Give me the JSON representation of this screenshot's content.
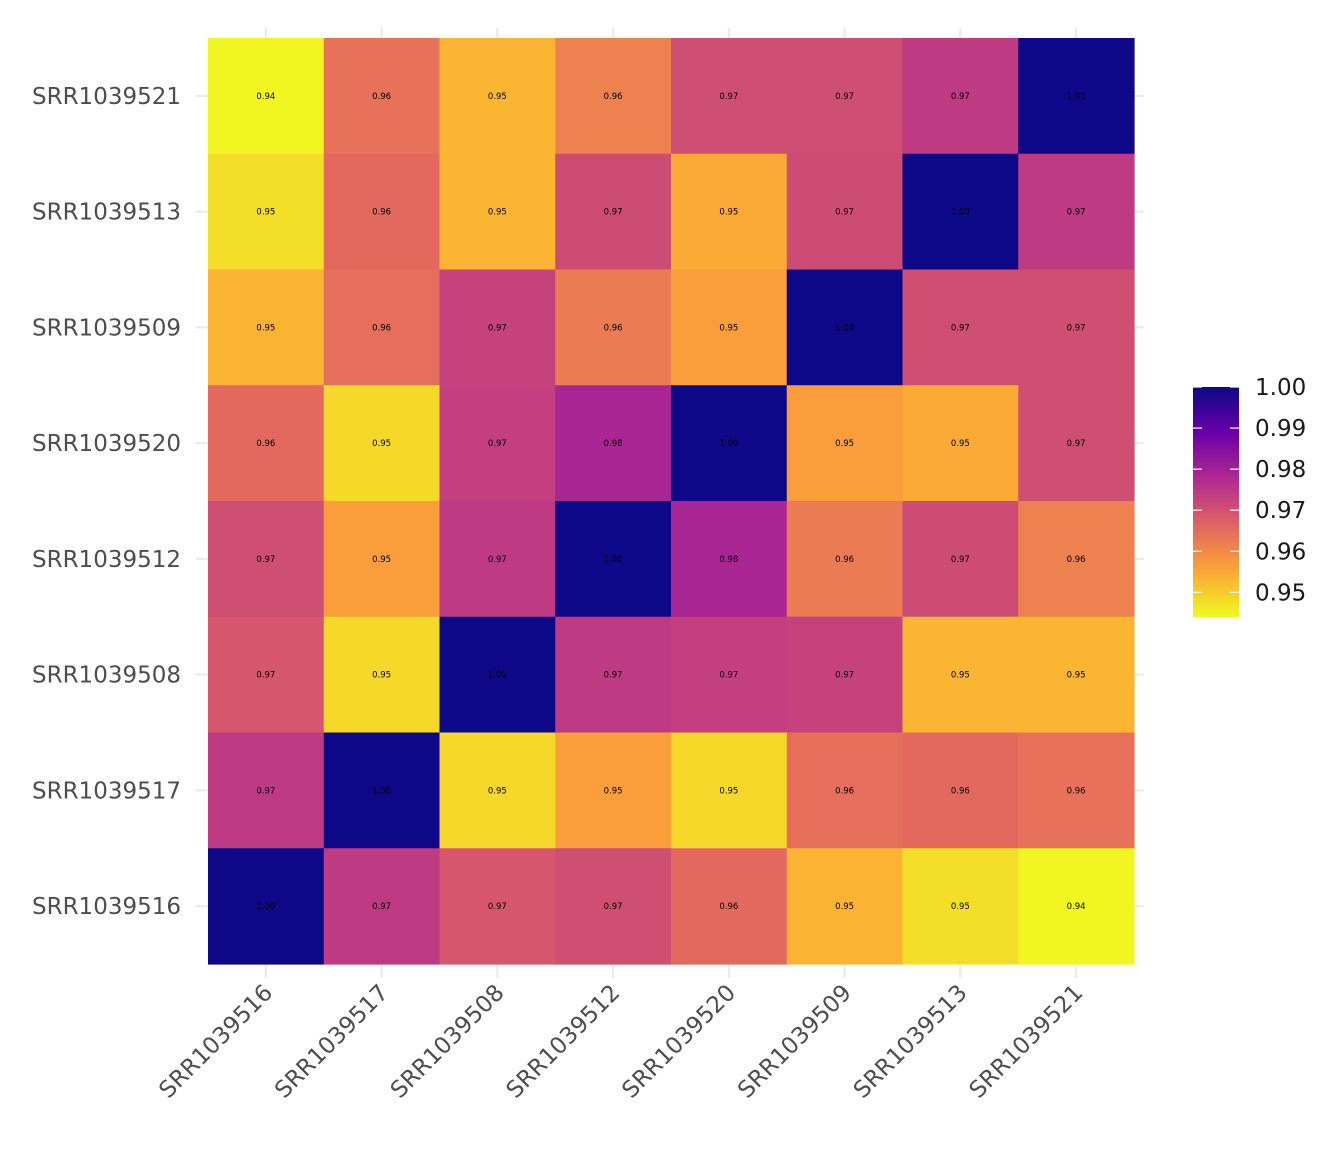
{
  "chart_data": {
    "type": "heatmap",
    "title": "",
    "xlabel": "",
    "ylabel": "",
    "x_categories": [
      "SRR1039516",
      "SRR1039517",
      "SRR1039508",
      "SRR1039512",
      "SRR1039520",
      "SRR1039509",
      "SRR1039513",
      "SRR1039521"
    ],
    "y_categories_top_to_bottom": [
      "SRR1039521",
      "SRR1039513",
      "SRR1039509",
      "SRR1039520",
      "SRR1039512",
      "SRR1039508",
      "SRR1039517",
      "SRR1039516"
    ],
    "values_note": "Rows follow y_categories_top_to_bottom; columns follow x_categories. Displayed labels are values rounded to 2 decimals. Fine-grained values are estimated from cell colours and are not shown in the image.",
    "values": [
      [
        0.9445,
        0.964,
        0.953,
        0.9615,
        0.9705,
        0.9705,
        0.9745,
        1.0
      ],
      [
        0.9475,
        0.9655,
        0.953,
        0.971,
        0.9545,
        0.971,
        1.0,
        0.9745
      ],
      [
        0.9535,
        0.9645,
        0.973,
        0.9625,
        0.9565,
        1.0,
        0.9705,
        0.9705
      ],
      [
        0.9655,
        0.9485,
        0.9735,
        0.979,
        1.0,
        0.9565,
        0.9545,
        0.9705
      ],
      [
        0.9705,
        0.9565,
        0.9745,
        1.0,
        0.979,
        0.9625,
        0.971,
        0.9615
      ],
      [
        0.969,
        0.9485,
        1.0,
        0.9745,
        0.9735,
        0.973,
        0.953,
        0.953
      ],
      [
        0.9745,
        1.0,
        0.9485,
        0.9565,
        0.9485,
        0.9645,
        0.9655,
        0.964
      ],
      [
        1.0,
        0.9745,
        0.969,
        0.9705,
        0.9655,
        0.9535,
        0.9475,
        0.9445
      ]
    ],
    "display_labels": [
      [
        "0.94",
        "0.96",
        "0.95",
        "0.96",
        "0.97",
        "0.97",
        "0.97",
        "1.00"
      ],
      [
        "0.95",
        "0.96",
        "0.95",
        "0.97",
        "0.95",
        "0.97",
        "1.00",
        "0.97"
      ],
      [
        "0.95",
        "0.96",
        "0.97",
        "0.96",
        "0.95",
        "1.00",
        "0.97",
        "0.97"
      ],
      [
        "0.96",
        "0.95",
        "0.97",
        "0.98",
        "1.00",
        "0.95",
        "0.95",
        "0.97"
      ],
      [
        "0.97",
        "0.95",
        "0.97",
        "1.00",
        "0.98",
        "0.96",
        "0.97",
        "0.96"
      ],
      [
        "0.97",
        "0.95",
        "1.00",
        "0.97",
        "0.97",
        "0.97",
        "0.95",
        "0.95"
      ],
      [
        "0.97",
        "1.00",
        "0.95",
        "0.95",
        "0.95",
        "0.96",
        "0.96",
        "0.96"
      ],
      [
        "1.00",
        "0.97",
        "0.97",
        "0.97",
        "0.96",
        "0.95",
        "0.95",
        "0.94"
      ]
    ],
    "color_scale": {
      "name": "plasma",
      "range": [
        0.944,
        1.0
      ],
      "stops": [
        "#0d0887",
        "#6a00a8",
        "#b12a90",
        "#e16462",
        "#fca636",
        "#f0f921"
      ]
    },
    "legend": {
      "title": "",
      "placement": "right",
      "ticks": [
        1.0,
        0.99,
        0.98,
        0.97,
        0.96,
        0.95
      ],
      "tick_labels": [
        "1.00",
        "0.99",
        "0.98",
        "0.97",
        "0.96",
        "0.95"
      ]
    },
    "grid": true
  }
}
